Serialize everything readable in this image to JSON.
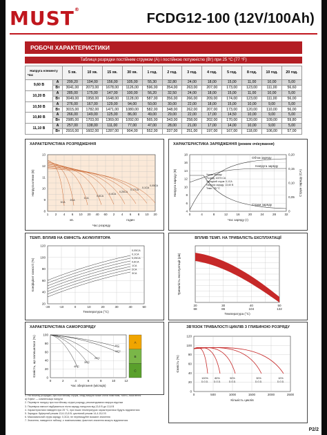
{
  "brand": {
    "logo": "MUST",
    "tm": "®"
  },
  "header": {
    "model": "FCDG12-100 (12V/100Ah)"
  },
  "section": {
    "title": "РОБОЧІ ХАРАКТЕРИСТИКИ"
  },
  "table": {
    "title": "Таблиця розрядки постійним струмом (A) і постійною потужністю (Вт) при 25 °C (77 °F)",
    "corner_top": "Напруга елементу",
    "corner_bottom": "Час",
    "columns": [
      "5 хв.",
      "10 хв.",
      "15 хв.",
      "30 хв.",
      "1 год.",
      "2 год.",
      "3 год.",
      "4 год.",
      "5 год.",
      "8 год.",
      "10 год.",
      "20 год."
    ],
    "groups": [
      {
        "voltage": "9,60 В",
        "rows": [
          {
            "unit": "A",
            "values": [
              "299,20",
              "194,00",
              "156,00",
              "105,00",
              "55,30",
              "32,80",
              "24,00",
              "18,00",
              "15,00",
              "11,00",
              "10,00",
              "5,00"
            ]
          },
          {
            "unit": "Вт",
            "values": [
              "3041,00",
              "2073,00",
              "1678,00",
              "1126,00",
              "596,00",
              "354,00",
              "263,00",
              "207,00",
              "173,00",
              "123,00",
              "111,00",
              "56,60"
            ]
          }
        ]
      },
      {
        "voltage": "10,20 В",
        "rows": [
          {
            "unit": "A",
            "values": [
              "285,00",
              "175,00",
              "147,00",
              "100,00",
              "56,20",
              "32,50",
              "24,00",
              "18,00",
              "15,00",
              "11,00",
              "10,00",
              "5,00"
            ]
          },
          {
            "unit": "Вт",
            "values": [
              "3049,00",
              "1958,00",
              "1648,00",
              "1128,00",
              "587,00",
              "356,00",
              "266,00",
              "209,00",
              "174,00",
              "123,00",
              "111,00",
              "56,00"
            ]
          }
        ]
      },
      {
        "voltage": "10,50 В",
        "rows": [
          {
            "unit": "A",
            "values": [
              "276,00",
              "167,00",
              "129,00",
              "94,00",
              "50,00",
              "30,00",
              "22,00",
              "18,00",
              "15,00",
              "10,00",
              "9,00",
              "5,00"
            ]
          },
          {
            "unit": "Вт",
            "values": [
              "3015,00",
              "1782,00",
              "1471,00",
              "1080,00",
              "582,00",
              "348,00",
              "262,00",
              "207,00",
              "173,00",
              "120,00",
              "110,00",
              "56,00"
            ]
          }
        ]
      },
      {
        "voltage": "10,80 В",
        "rows": [
          {
            "unit": "A",
            "values": [
              "266,00",
              "149,00",
              "125,00",
              "86,00",
              "49,00",
              "29,00",
              "22,00",
              "17,00",
              "14,50",
              "10,00",
              "9,00",
              "5,00"
            ]
          },
          {
            "unit": "Вт",
            "values": [
              "2985,00",
              "1703,00",
              "1369,00",
              "1092,00",
              "565,00",
              "343,00",
              "258,00",
              "202,00",
              "170,00",
              "120,00",
              "109,00",
              "59,80"
            ]
          }
        ]
      },
      {
        "voltage": "11,10 В",
        "rows": [
          {
            "unit": "A",
            "values": [
              "257,00",
              "138,00",
              "111,00",
              "77,00",
              "47,00",
              "28,00",
              "21,00",
              "17,00",
              "14,00",
              "10,00",
              "9,00",
              "5,00"
            ]
          },
          {
            "unit": "Вт",
            "values": [
              "2916,00",
              "1602,00",
              "1287,00",
              "904,00",
              "552,00",
              "337,00",
              "251,00",
              "197,00",
              "167,00",
              "118,00",
              "106,00",
              "57,00"
            ]
          }
        ]
      }
    ]
  },
  "charts": {
    "discharge": {
      "title": "ХАРАКТЕРИСТИКА РОЗРЯДЖЕННЯ",
      "ylabel": "Напруга клеми (В)",
      "xlabel": "Час розряду",
      "yticks": [
        "13",
        "12",
        "11",
        "10",
        "9",
        "8"
      ],
      "xticks": [
        "1",
        "2",
        "4",
        "6",
        "10",
        "20",
        "40",
        "60",
        "2",
        "4",
        "6",
        "8",
        "10",
        "20"
      ],
      "xgroups": [
        "хв.",
        "годин"
      ],
      "labels": [
        "3CA",
        "2CA",
        "1CA",
        "0,6CA",
        "0,4CA",
        "0,25CA",
        "0,17CA",
        "0,1CA",
        "0,05CA"
      ],
      "chart_data": {
        "type": "line",
        "title": "ХАРАКТЕРИСТИКА РОЗРЯДЖЕННЯ",
        "ylabel": "Напруга клеми (В)",
        "xlabel": "Час розряду",
        "ylim": [
          8,
          13
        ],
        "series": [
          {
            "name": "3CA"
          },
          {
            "name": "2CA"
          },
          {
            "name": "1CA"
          },
          {
            "name": "0,6CA"
          },
          {
            "name": "0,4CA"
          },
          {
            "name": "0,25CA"
          },
          {
            "name": "0,17CA"
          },
          {
            "name": "0,1CA"
          },
          {
            "name": "0,05CA"
          }
        ]
      }
    },
    "charge": {
      "title": "ХАРАКТЕРИСТИКА ЗАРЯДЖЕННЯ (режим очікування)",
      "ylabel_left": "Напруга заряду (В)",
      "ylabel_right": "Струм заряду (CA)",
      "xlabel": "Час заряду (г)",
      "y_left": [
        "18",
        "16",
        "14",
        "12",
        "10",
        "8",
        "6",
        "4"
      ],
      "y_right": [
        "0,20",
        "0,15",
        "0,10",
        "0,05",
        "0"
      ],
      "xticks": [
        "0",
        "4",
        "8",
        "12",
        "16",
        "20",
        "24",
        "28",
        "32"
      ],
      "labels": [
        "Об'єм заряду",
        "Напруга заряду",
        "Струм заряду"
      ],
      "legend": [
        "Умови заряду:",
        "Розряд: 100% CA",
        "Зарядний струм: 0,1CA",
        "Напруга заряду: 13,60 В",
        "Темп.: 25 °C"
      ]
    },
    "temp_capacity": {
      "title": "ТЕМП. ВПЛИВ НА ЄМНІСТЬ АКУМУЛЯТОРА",
      "ylabel": "Коефіцієнт ємності (%)",
      "xlabel": "Температура (°С)",
      "yticks": [
        "120",
        "100",
        "80",
        "60",
        "40",
        "20"
      ],
      "xticks": [
        "-20",
        "-10",
        "0",
        "10",
        "20",
        "30",
        "40",
        "50"
      ],
      "legend": [
        "0,05CA",
        "0,1CA",
        "0,25CA",
        "0,6CA",
        "1CA",
        "2CA",
        "3CA"
      ]
    },
    "temp_life": {
      "title": "ВПЛИВ ТЕМП. НА ТРИВАЛІСТЬ ЕКСПЛУАТАЦІЇ",
      "ylabel": "Тривалість експлуатації (рік)",
      "xlabel": "Температура (°С)",
      "xticks": [
        "20",
        "30",
        "40",
        "50"
      ],
      "xticks_f": [
        "68",
        "86",
        "104",
        "122"
      ]
    },
    "self_discharge": {
      "title": "ХАРАКТЕРИСТИКА САМОРОЗРЯДУ",
      "ylabel": "Ємність, що залишилася (%)",
      "xlabel": "Час зберігання (місяців)",
      "yticks": [
        "100",
        "80",
        "60",
        "40",
        "20",
        "0"
      ],
      "xticks": [
        "0",
        "2",
        "4",
        "6",
        "8",
        "10",
        "12"
      ],
      "curves": [
        "5°С",
        "15°С",
        "25°С",
        "30°С",
        "40°С"
      ],
      "zones": [
        "A",
        "B",
        "C"
      ]
    },
    "cycle_life": {
      "title": "ЗВ'ЯЗОК ТРИВАЛОСТІ ЦИКЛІВ З ГЛИБИНОЮ РОЗРЯДУ",
      "ylabel": "Ємність (%)",
      "xlabel": "Кількість циклів",
      "yticks": [
        "120",
        "100",
        "80",
        "60",
        "40",
        "20",
        "0"
      ],
      "xticks": [
        "0",
        "500",
        "1000",
        "1500",
        "2000",
        "2500"
      ],
      "labels": [
        "100%",
        "80%",
        "50%",
        "30%",
        "10%"
      ],
      "sublabel": "D.O.D."
    }
  },
  "footnotes": [
    "1. На початку розрядки, при постійному струмі, спад напруги може стати помітним, тобто, посилення",
    "а) Ефект — компенсація напруги",
    "2. Перевірте напругу при постійному струмі розряду, рекомендована напруга відсічки",
    "3. Перевірка ємності відбувається після заряду напругою від 13,6 В до 13,8 В",
    "4. Характеристики наведені при 25 °C, при інших температурах характеристики будуть відрізнятися",
    "5. Зарядка: буферний режим 13,6-13,8 В; циклічний режим 14,4-15,0 В",
    "6. Максимальний струм заряду: 0,3CA; не перевищуйте вказане значення",
    "7. Значення, наведені в таблиці, є номінальними; фактичні значення можуть відрізнятися"
  ],
  "page": {
    "number": "P2/2"
  }
}
